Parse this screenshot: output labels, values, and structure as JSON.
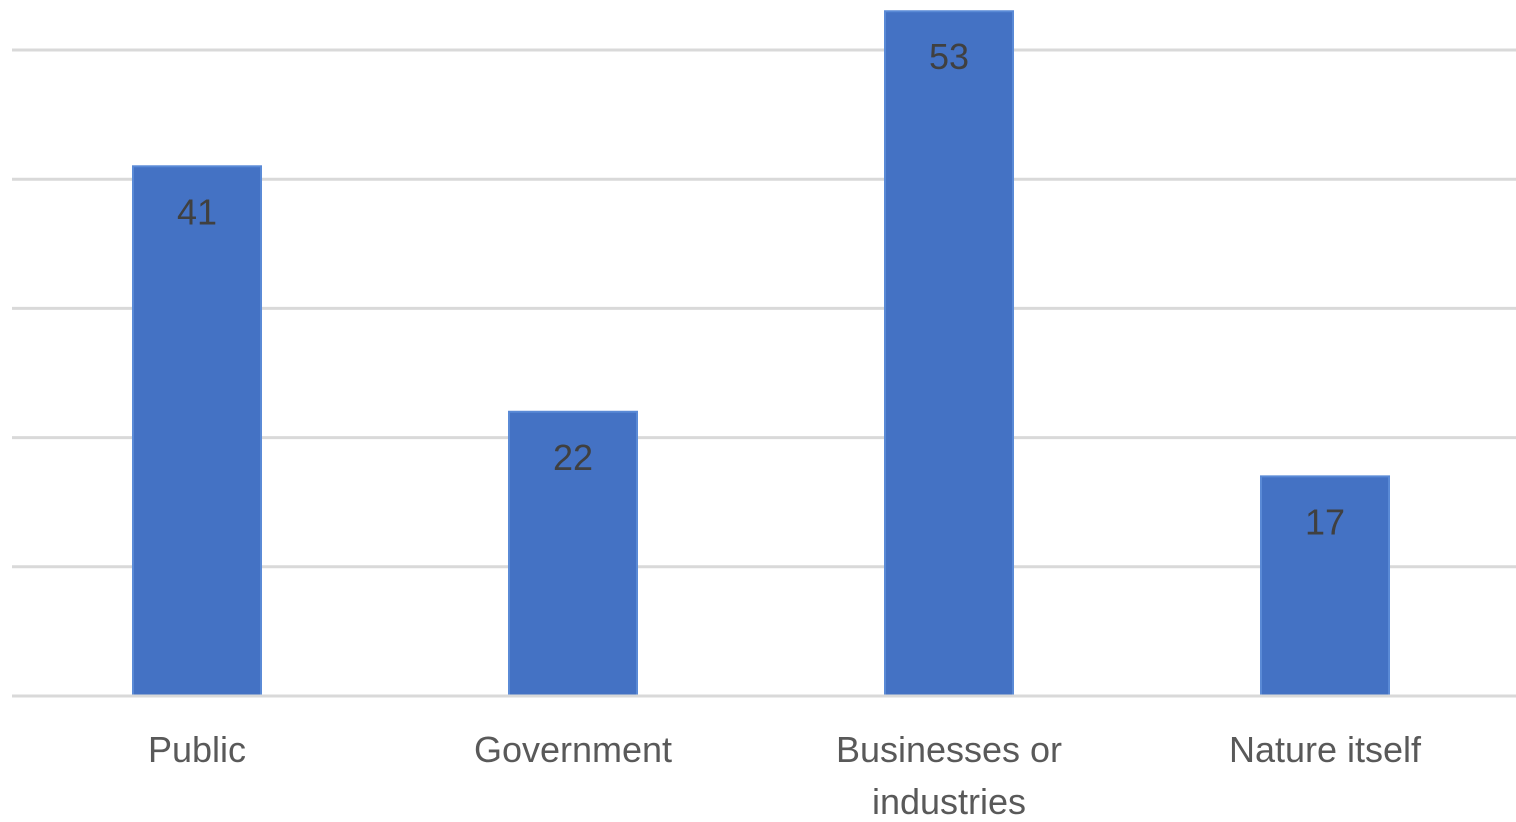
{
  "chart_data": {
    "type": "bar",
    "categories": [
      "Public",
      "Government",
      "Businesses or industries",
      "Nature itself"
    ],
    "category_lines": [
      [
        "Public"
      ],
      [
        "Government"
      ],
      [
        "Businesses or",
        "industries"
      ],
      [
        "Nature itself"
      ]
    ],
    "values": [
      41,
      22,
      53,
      17
    ],
    "data_labels": [
      "41",
      "22",
      "53",
      "17"
    ],
    "title": "",
    "xlabel": "",
    "ylabel": "",
    "ylim": [
      0,
      50
    ],
    "y_tick_interval": 10,
    "y_tick_labels_visible": false,
    "grid": true,
    "legend": "none",
    "colors": {
      "bar": "#4472c4",
      "grid": "#d9d9d9",
      "data_label": "#404040",
      "category_label": "#595959"
    }
  }
}
